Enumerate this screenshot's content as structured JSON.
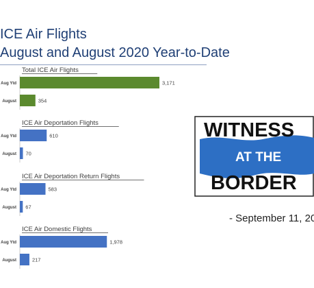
{
  "title": {
    "line1": "ICE Air Flights",
    "line2": "August and August 2020 Year-to-Date"
  },
  "colors": {
    "title": "#1f3f75",
    "total_bar": "#5b8a2e",
    "bar": "#4472c4",
    "logo_blue": "#2d6fc4",
    "logo_text": "#111111"
  },
  "chart_data": [
    {
      "type": "bar",
      "orientation": "horizontal",
      "title": "Total ICE Air Flights",
      "categories": [
        "Aug Ytd",
        "August"
      ],
      "values": [
        3171,
        354
      ],
      "value_labels": [
        "3,171",
        "354"
      ],
      "color": "#5b8a2e",
      "xlim": [
        0,
        3171
      ]
    },
    {
      "type": "bar",
      "orientation": "horizontal",
      "title": "ICE Air Deportation Flights",
      "categories": [
        "Aug Ytd",
        "August"
      ],
      "values": [
        610,
        70
      ],
      "value_labels": [
        "610",
        "70"
      ],
      "color": "#4472c4",
      "xlim": [
        0,
        3171
      ]
    },
    {
      "type": "bar",
      "orientation": "horizontal",
      "title": "ICE Air Deportation Return Flights",
      "categories": [
        "Aug Ytd",
        "August"
      ],
      "values": [
        583,
        67
      ],
      "value_labels": [
        "583",
        "67"
      ],
      "color": "#4472c4",
      "xlim": [
        0,
        3171
      ]
    },
    {
      "type": "bar",
      "orientation": "horizontal",
      "title": "ICE Air Domestic Flights",
      "categories": [
        "Aug Ytd",
        "August"
      ],
      "values": [
        1978,
        217
      ],
      "value_labels": [
        "1,978",
        "217"
      ],
      "color": "#4472c4",
      "xlim": [
        0,
        3171
      ]
    }
  ],
  "logo": {
    "line1": "WITNESS",
    "line2": "AT THE",
    "line3": "BORDER"
  },
  "date": "-  September 11, 20"
}
